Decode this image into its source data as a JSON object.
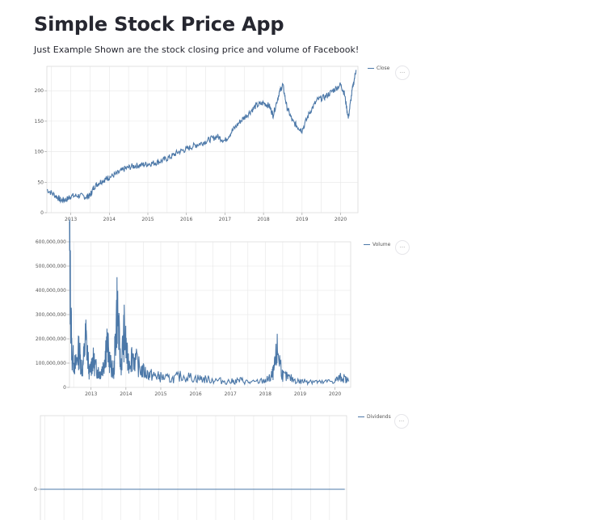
{
  "app": {
    "title": "Simple Stock Price App",
    "subtitle": "Just Example Shown are the stock closing price and volume of Facebook!"
  },
  "menu_icon": "ellipsis-icon",
  "colors": {
    "line": "#4c78a8",
    "grid": "#e6e6e6"
  },
  "charts": [
    {
      "id": "close",
      "legend": "Close",
      "menu_label": "···"
    },
    {
      "id": "volume",
      "legend": "Volume",
      "menu_label": "···"
    },
    {
      "id": "dividends",
      "legend": "Dividends",
      "menu_label": "···"
    }
  ],
  "chart_data": [
    {
      "type": "line",
      "x_ticks": [
        "2013",
        "2014",
        "2015",
        "2016",
        "2017",
        "2018",
        "2019",
        "2020"
      ],
      "x": [
        2012.38,
        2012.6,
        2012.75,
        2012.9,
        2013.0,
        2013.2,
        2013.4,
        2013.5,
        2013.6,
        2013.75,
        2013.9,
        2014.0,
        2014.2,
        2014.4,
        2014.6,
        2014.8,
        2015.0,
        2015.2,
        2015.4,
        2015.6,
        2015.8,
        2016.0,
        2016.2,
        2016.4,
        2016.6,
        2016.8,
        2017.0,
        2017.2,
        2017.4,
        2017.6,
        2017.8,
        2018.0,
        2018.15,
        2018.25,
        2018.4,
        2018.5,
        2018.6,
        2018.75,
        2018.9,
        2019.0,
        2019.2,
        2019.4,
        2019.6,
        2019.8,
        2020.0,
        2020.1,
        2020.2,
        2020.3,
        2020.4
      ],
      "series": [
        {
          "name": "Close",
          "values": [
            38,
            28,
            20,
            22,
            27,
            28,
            26,
            28,
            42,
            50,
            55,
            58,
            64,
            72,
            76,
            78,
            80,
            82,
            86,
            92,
            100,
            104,
            110,
            114,
            120,
            125,
            118,
            135,
            150,
            162,
            175,
            180,
            175,
            160,
            195,
            210,
            175,
            150,
            140,
            135,
            165,
            185,
            190,
            200,
            210,
            195,
            155,
            200,
            234
          ]
        }
      ],
      "ylim": [
        0,
        240
      ],
      "y_ticks": [
        0,
        50,
        100,
        150,
        200
      ],
      "y_tick_labels": [
        "0",
        "50",
        "100",
        "150",
        "200"
      ]
    },
    {
      "type": "line",
      "x_ticks": [
        "2013",
        "2014",
        "2015",
        "2016",
        "2017",
        "2018",
        "2019",
        "2020"
      ],
      "x": [
        2012.38,
        2012.45,
        2012.55,
        2012.65,
        2012.75,
        2012.85,
        2012.95,
        2013.05,
        2013.15,
        2013.25,
        2013.35,
        2013.45,
        2013.55,
        2013.65,
        2013.75,
        2013.85,
        2013.95,
        2014.05,
        2014.2,
        2014.4,
        2014.6,
        2014.8,
        2015.0,
        2015.3,
        2015.6,
        2016.0,
        2016.3,
        2016.6,
        2017.0,
        2017.3,
        2017.6,
        2018.0,
        2018.15,
        2018.25,
        2018.35,
        2018.5,
        2018.7,
        2019.0,
        2019.3,
        2019.6,
        2020.0,
        2020.2,
        2020.4
      ],
      "series": [
        {
          "name": "Volume",
          "values": [
            580000000,
            140000000,
            90000000,
            160000000,
            70000000,
            220000000,
            60000000,
            120000000,
            80000000,
            60000000,
            90000000,
            200000000,
            100000000,
            60000000,
            365000000,
            80000000,
            240000000,
            110000000,
            140000000,
            80000000,
            60000000,
            50000000,
            45000000,
            35000000,
            50000000,
            40000000,
            35000000,
            30000000,
            25000000,
            30000000,
            20000000,
            30000000,
            40000000,
            70000000,
            165000000,
            50000000,
            40000000,
            25000000,
            30000000,
            20000000,
            30000000,
            45000000,
            25000000
          ]
        }
      ],
      "ylim": [
        0,
        600000000
      ],
      "y_ticks": [
        0,
        100000000,
        200000000,
        300000000,
        400000000,
        500000000,
        600000000
      ],
      "y_tick_labels": [
        "0",
        "100,000,000",
        "200,000,000",
        "300,000,000",
        "400,000,000",
        "500,000,000",
        "600,000,000"
      ]
    },
    {
      "type": "line",
      "x": [
        2012.38,
        2020.4
      ],
      "series": [
        {
          "name": "Dividends",
          "values": [
            0,
            0
          ]
        }
      ],
      "y_ticks": [
        0
      ],
      "y_tick_labels": [
        "0"
      ]
    }
  ]
}
